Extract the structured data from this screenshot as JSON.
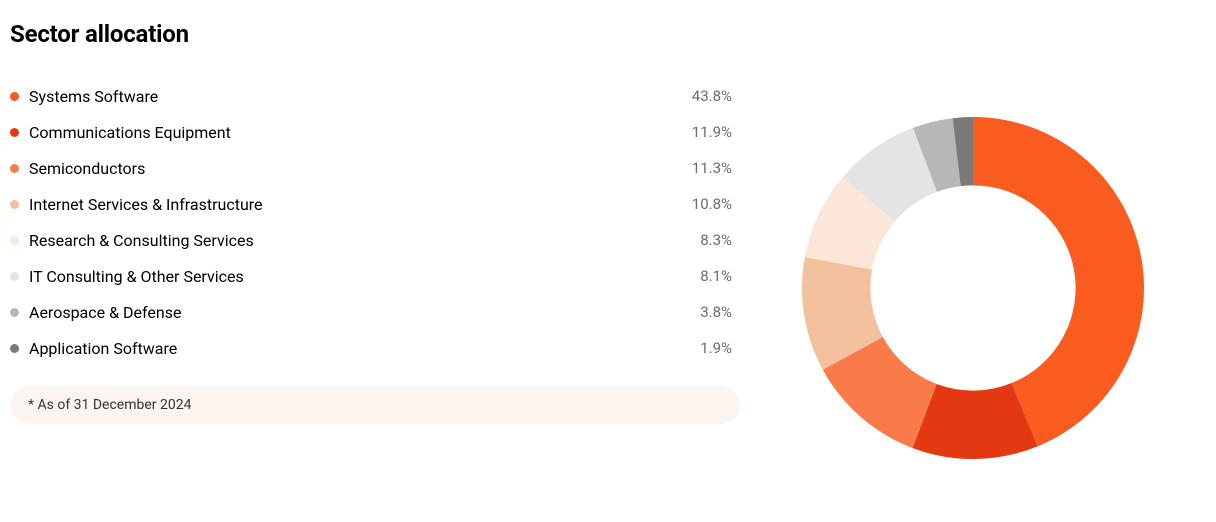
{
  "title": "Sector allocation",
  "footnote": "* As of 31 December 2024",
  "chart": {
    "type": "donut",
    "outer_radius": 180,
    "inner_radius": 108,
    "start_angle_deg": 0,
    "background_color": "#ffffff",
    "title_fontsize": 24,
    "label_fontsize": 16,
    "value_fontsize": 15,
    "value_color": "#6b6b6b",
    "footnote_bg": "#fcf5ef",
    "footnote_fontsize": 14,
    "swatch_size": 9,
    "slices": [
      {
        "label": "Systems Software",
        "value": 43.8,
        "color": "#fa5b1e",
        "value_text": "43.8%"
      },
      {
        "label": "Communications Equipment",
        "value": 11.9,
        "color": "#e23913",
        "value_text": "11.9%"
      },
      {
        "label": "Semiconductors",
        "value": 11.3,
        "color": "#f97b4a",
        "value_text": "11.3%"
      },
      {
        "label": "Internet Services & Infrastructure",
        "value": 10.8,
        "color": "#f4c19e",
        "value_text": "10.8%"
      },
      {
        "label": "Research & Consulting Services",
        "value": 8.3,
        "color": "#fbe6d7",
        "value_text": "8.3%"
      },
      {
        "label": "IT Consulting & Other Services",
        "value": 8.1,
        "color": "#e4e4e4",
        "value_text": "8.1%"
      },
      {
        "label": "Aerospace & Defense",
        "value": 3.8,
        "color": "#b7b7b7",
        "value_text": "3.8%"
      },
      {
        "label": "Application Software",
        "value": 1.9,
        "color": "#7a7a7a",
        "value_text": "1.9%"
      }
    ]
  }
}
